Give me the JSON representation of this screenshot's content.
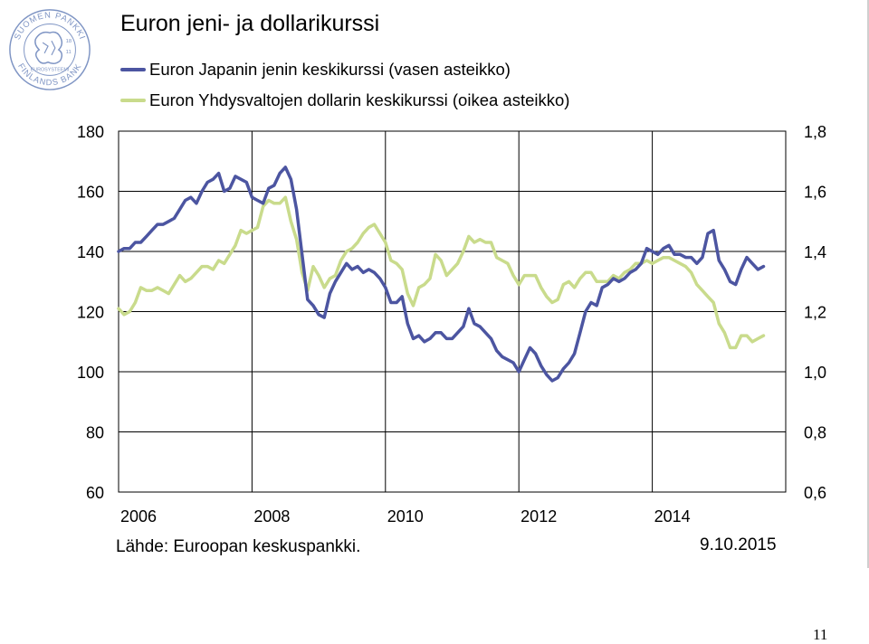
{
  "logo": {
    "icon": "bank-of-finland-lion-seal",
    "text_top": "SUOMEN PANKKI",
    "text_bottom": "FINLANDS BANK",
    "text_inner": "EUROSYSTEEMI",
    "years": [
      "18",
      "11"
    ],
    "color": "#7f95c4"
  },
  "page_number": "11",
  "source_note": "Lähde: Euroopan keskuspankki.",
  "date_stamp": "9.10.2015",
  "chart_data": {
    "type": "line",
    "title": "Euron jeni- ja dollarikurssi",
    "x_tick_labels": [
      "2006",
      "2008",
      "2010",
      "2012",
      "2014"
    ],
    "x_ticks": [
      2006,
      2008,
      2010,
      2012,
      2014
    ],
    "xlim": [
      2006.0,
      2016.0
    ],
    "left_axis": {
      "ylim": [
        60,
        180
      ],
      "ticks": [
        60,
        80,
        100,
        120,
        140,
        160,
        180
      ],
      "tick_labels": [
        "60",
        "80",
        "100",
        "120",
        "140",
        "160",
        "180"
      ]
    },
    "right_axis": {
      "ylim": [
        0.6,
        1.8
      ],
      "ticks": [
        0.6,
        0.8,
        1.0,
        1.2,
        1.4,
        1.6,
        1.8
      ],
      "tick_labels": [
        "0,6",
        "0,8",
        "1,0",
        "1,2",
        "1,4",
        "1,6",
        "1,8"
      ]
    },
    "grid": true,
    "legend_placement": "top-left",
    "series": [
      {
        "name": "Euron Japanin jenin keskikurssi (vasen asteikko)",
        "axis": "left",
        "color": "#4c55a1",
        "x": [
          2006.0,
          2006.083,
          2006.167,
          2006.25,
          2006.333,
          2006.417,
          2006.5,
          2006.583,
          2006.667,
          2006.75,
          2006.833,
          2006.917,
          2007.0,
          2007.083,
          2007.167,
          2007.25,
          2007.333,
          2007.417,
          2007.5,
          2007.583,
          2007.667,
          2007.75,
          2007.833,
          2007.917,
          2008.0,
          2008.083,
          2008.167,
          2008.25,
          2008.333,
          2008.417,
          2008.5,
          2008.583,
          2008.667,
          2008.75,
          2008.833,
          2008.917,
          2009.0,
          2009.083,
          2009.167,
          2009.25,
          2009.333,
          2009.417,
          2009.5,
          2009.583,
          2009.667,
          2009.75,
          2009.833,
          2009.917,
          2010.0,
          2010.083,
          2010.167,
          2010.25,
          2010.333,
          2010.417,
          2010.5,
          2010.583,
          2010.667,
          2010.75,
          2010.833,
          2010.917,
          2011.0,
          2011.083,
          2011.167,
          2011.25,
          2011.333,
          2011.417,
          2011.5,
          2011.583,
          2011.667,
          2011.75,
          2011.833,
          2011.917,
          2012.0,
          2012.083,
          2012.167,
          2012.25,
          2012.333,
          2012.417,
          2012.5,
          2012.583,
          2012.667,
          2012.75,
          2012.833,
          2012.917,
          2013.0,
          2013.083,
          2013.167,
          2013.25,
          2013.333,
          2013.417,
          2013.5,
          2013.583,
          2013.667,
          2013.75,
          2013.833,
          2013.917,
          2014.0,
          2014.083,
          2014.167,
          2014.25,
          2014.333,
          2014.417,
          2014.5,
          2014.583,
          2014.667,
          2014.75,
          2014.833,
          2014.917,
          2015.0,
          2015.083,
          2015.167,
          2015.25,
          2015.333,
          2015.417,
          2015.5,
          2015.583,
          2015.667
        ],
        "values": [
          140,
          141,
          141,
          143,
          143,
          145,
          147,
          149,
          149,
          150,
          151,
          154,
          157,
          158,
          156,
          160,
          163,
          164,
          166,
          160,
          161,
          165,
          164,
          163,
          158,
          157,
          156,
          161,
          162,
          166,
          168,
          164,
          154,
          139,
          124,
          122,
          119,
          118,
          126,
          130,
          133,
          136,
          134,
          135,
          133,
          134,
          133,
          131,
          128,
          123,
          123,
          125,
          116,
          111,
          112,
          110,
          111,
          113,
          113,
          111,
          111,
          113,
          115,
          121,
          116,
          115,
          113,
          111,
          107,
          105,
          104,
          103,
          100,
          104,
          108,
          106,
          102,
          99,
          97,
          98,
          101,
          103,
          106,
          113,
          120,
          123,
          122,
          128,
          129,
          131,
          130,
          131,
          133,
          134,
          136,
          141,
          140,
          139,
          141,
          142,
          139,
          139,
          138,
          138,
          136,
          138,
          146,
          147,
          137,
          134,
          130,
          129,
          134,
          138,
          136,
          134,
          135
        ]
      },
      {
        "name": "Euron Yhdysvaltojen dollarin keskikurssi (oikea asteikko)",
        "axis": "right",
        "color": "#c9db8c",
        "x": [
          2006.0,
          2006.083,
          2006.167,
          2006.25,
          2006.333,
          2006.417,
          2006.5,
          2006.583,
          2006.667,
          2006.75,
          2006.833,
          2006.917,
          2007.0,
          2007.083,
          2007.167,
          2007.25,
          2007.333,
          2007.417,
          2007.5,
          2007.583,
          2007.667,
          2007.75,
          2007.833,
          2007.917,
          2008.0,
          2008.083,
          2008.167,
          2008.25,
          2008.333,
          2008.417,
          2008.5,
          2008.583,
          2008.667,
          2008.75,
          2008.833,
          2008.917,
          2009.0,
          2009.083,
          2009.167,
          2009.25,
          2009.333,
          2009.417,
          2009.5,
          2009.583,
          2009.667,
          2009.75,
          2009.833,
          2009.917,
          2010.0,
          2010.083,
          2010.167,
          2010.25,
          2010.333,
          2010.417,
          2010.5,
          2010.583,
          2010.667,
          2010.75,
          2010.833,
          2010.917,
          2011.0,
          2011.083,
          2011.167,
          2011.25,
          2011.333,
          2011.417,
          2011.5,
          2011.583,
          2011.667,
          2011.75,
          2011.833,
          2011.917,
          2012.0,
          2012.083,
          2012.167,
          2012.25,
          2012.333,
          2012.417,
          2012.5,
          2012.583,
          2012.667,
          2012.75,
          2012.833,
          2012.917,
          2013.0,
          2013.083,
          2013.167,
          2013.25,
          2013.333,
          2013.417,
          2013.5,
          2013.583,
          2013.667,
          2013.75,
          2013.833,
          2013.917,
          2014.0,
          2014.083,
          2014.167,
          2014.25,
          2014.333,
          2014.417,
          2014.5,
          2014.583,
          2014.667,
          2014.75,
          2014.833,
          2014.917,
          2015.0,
          2015.083,
          2015.167,
          2015.25,
          2015.333,
          2015.417,
          2015.5,
          2015.583,
          2015.667
        ],
        "values": [
          1.21,
          1.19,
          1.2,
          1.23,
          1.28,
          1.27,
          1.27,
          1.28,
          1.27,
          1.26,
          1.29,
          1.32,
          1.3,
          1.31,
          1.33,
          1.35,
          1.35,
          1.34,
          1.37,
          1.36,
          1.39,
          1.42,
          1.47,
          1.46,
          1.47,
          1.48,
          1.55,
          1.57,
          1.56,
          1.56,
          1.58,
          1.5,
          1.44,
          1.33,
          1.27,
          1.35,
          1.32,
          1.28,
          1.31,
          1.32,
          1.37,
          1.4,
          1.41,
          1.43,
          1.46,
          1.48,
          1.49,
          1.46,
          1.43,
          1.37,
          1.36,
          1.34,
          1.26,
          1.22,
          1.28,
          1.29,
          1.31,
          1.39,
          1.37,
          1.32,
          1.34,
          1.36,
          1.4,
          1.45,
          1.43,
          1.44,
          1.43,
          1.43,
          1.38,
          1.37,
          1.36,
          1.32,
          1.29,
          1.32,
          1.32,
          1.32,
          1.28,
          1.25,
          1.23,
          1.24,
          1.29,
          1.3,
          1.28,
          1.31,
          1.33,
          1.33,
          1.3,
          1.3,
          1.3,
          1.32,
          1.31,
          1.33,
          1.34,
          1.36,
          1.36,
          1.37,
          1.36,
          1.37,
          1.38,
          1.38,
          1.37,
          1.36,
          1.35,
          1.33,
          1.29,
          1.27,
          1.25,
          1.23,
          1.16,
          1.13,
          1.08,
          1.08,
          1.12,
          1.12,
          1.1,
          1.11,
          1.12
        ]
      }
    ]
  }
}
